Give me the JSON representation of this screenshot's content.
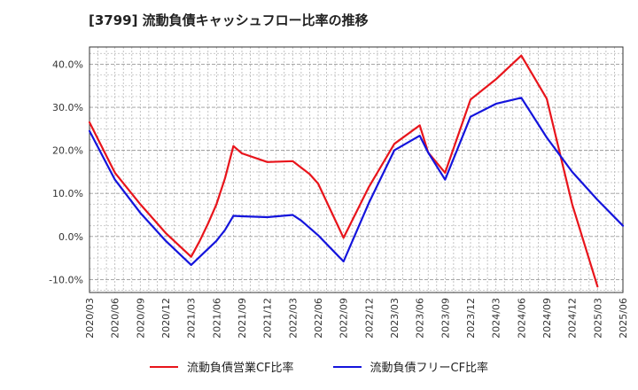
{
  "title": "[3799]  流動負債キャッシュフロー比率の推移",
  "chart_data": {
    "type": "line",
    "title": "[3799]  流動負債キャッシュフロー比率の推移",
    "xlabel": "",
    "ylabel": "",
    "ylim": [
      -13,
      44
    ],
    "xlim": [
      "2020/03",
      "2025/06"
    ],
    "grid": true,
    "legend": "bottom",
    "x_ticks": [
      "2020/03",
      "2020/06",
      "2020/09",
      "2020/12",
      "2021/03",
      "2021/06",
      "2021/09",
      "2021/12",
      "2022/03",
      "2022/06",
      "2022/09",
      "2022/12",
      "2023/03",
      "2023/06",
      "2023/09",
      "2023/12",
      "2024/03",
      "2024/06",
      "2024/09",
      "2024/12",
      "2025/03",
      "2025/06"
    ],
    "y_ticks": [
      {
        "value": 40,
        "label": "40.0%"
      },
      {
        "value": 30,
        "label": "30.0%"
      },
      {
        "value": 20,
        "label": "20.0%"
      },
      {
        "value": 10,
        "label": "10.0%"
      },
      {
        "value": 0,
        "label": "0.0%"
      },
      {
        "value": -10,
        "label": "-10.0%"
      }
    ],
    "series": [
      {
        "name": "流動負債営業CF比率",
        "color": "#e8141b",
        "points": [
          [
            "2020/03",
            26.5
          ],
          [
            "2020/06",
            14.8
          ],
          [
            "2020/09",
            7.5
          ],
          [
            "2020/12",
            0.8
          ],
          [
            "2021/03",
            -4.7
          ],
          [
            "2021/04",
            -1.1
          ],
          [
            "2021/05",
            3.0
          ],
          [
            "2021/06",
            7.5
          ],
          [
            "2021/07",
            13.5
          ],
          [
            "2021/08",
            21.0
          ],
          [
            "2021/09",
            19.3
          ],
          [
            "2021/12",
            17.3
          ],
          [
            "2022/03",
            17.5
          ],
          [
            "2022/04",
            16.0
          ],
          [
            "2022/05",
            14.5
          ],
          [
            "2022/06",
            12.3
          ],
          [
            "2022/09",
            -0.3
          ],
          [
            "2022/12",
            11.5
          ],
          [
            "2023/03",
            21.5
          ],
          [
            "2023/06",
            25.8
          ],
          [
            "2023/07",
            19.5
          ],
          [
            "2023/09",
            14.8
          ],
          [
            "2023/12",
            31.8
          ],
          [
            "2024/03",
            36.5
          ],
          [
            "2024/06",
            42.0
          ],
          [
            "2024/09",
            32.0
          ],
          [
            "2024/12",
            7.5
          ],
          [
            "2025/03",
            -11.6
          ]
        ]
      },
      {
        "name": "流動負債フリーCF比率",
        "color": "#1414dc",
        "points": [
          [
            "2020/03",
            24.5
          ],
          [
            "2020/06",
            13.2
          ],
          [
            "2020/09",
            5.5
          ],
          [
            "2020/12",
            -1.0
          ],
          [
            "2021/03",
            -6.6
          ],
          [
            "2021/06",
            -1.0
          ],
          [
            "2021/07",
            1.5
          ],
          [
            "2021/08",
            4.8
          ],
          [
            "2021/09",
            4.7
          ],
          [
            "2021/12",
            4.5
          ],
          [
            "2022/03",
            5.0
          ],
          [
            "2022/04",
            3.7
          ],
          [
            "2022/05",
            2.0
          ],
          [
            "2022/06",
            0.3
          ],
          [
            "2022/09",
            -5.8
          ],
          [
            "2022/12",
            7.8
          ],
          [
            "2023/03",
            20.0
          ],
          [
            "2023/06",
            23.4
          ],
          [
            "2023/07",
            19.5
          ],
          [
            "2023/09",
            13.2
          ],
          [
            "2023/12",
            27.8
          ],
          [
            "2024/03",
            30.8
          ],
          [
            "2024/06",
            32.2
          ],
          [
            "2024/09",
            23.0
          ],
          [
            "2024/12",
            15.0
          ],
          [
            "2025/03",
            8.5
          ],
          [
            "2025/06",
            2.5
          ]
        ]
      }
    ]
  }
}
